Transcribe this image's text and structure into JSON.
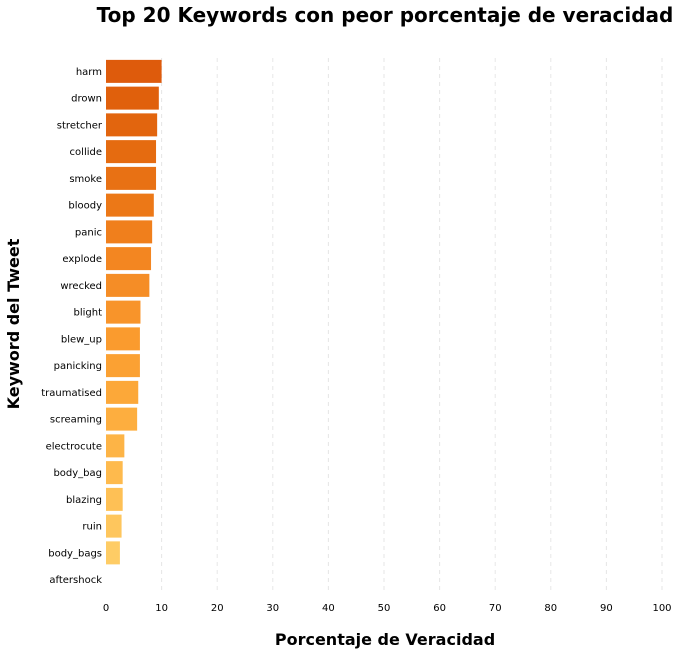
{
  "chart_data": {
    "type": "bar",
    "orientation": "horizontal",
    "title": "Top 20 Keywords con peor porcentaje de veracidad",
    "xlabel": "Porcentaje de Veracidad",
    "ylabel": "Keyword del Tweet",
    "xlim": [
      0,
      100
    ],
    "xticks": [
      "0",
      "10",
      "20",
      "30",
      "40",
      "50",
      "60",
      "70",
      "80",
      "90",
      "100"
    ],
    "grid": "vertical dashed",
    "categories": [
      "harm",
      "drown",
      "stretcher",
      "collide",
      "smoke",
      "bloody",
      "panic",
      "explode",
      "wrecked",
      "blight",
      "blew_up",
      "panicking",
      "traumatised",
      "screaming",
      "electrocute",
      "body_bag",
      "blazing",
      "ruin",
      "body_bags",
      "aftershock"
    ],
    "values": [
      10.0,
      9.5,
      9.2,
      9.0,
      9.0,
      8.6,
      8.3,
      8.1,
      7.8,
      6.2,
      6.1,
      6.1,
      5.8,
      5.6,
      3.3,
      3.0,
      3.0,
      2.8,
      2.5,
      0.0
    ],
    "colors": [
      "#de5b0c",
      "#e0600c",
      "#e2650e",
      "#e56b10",
      "#e87114",
      "#ec7817",
      "#f07f1c",
      "#f38621",
      "#f58d26",
      "#f8942a",
      "#fa9b2e",
      "#fba133",
      "#fca839",
      "#fdae3f",
      "#fdb446",
      "#feba4d",
      "#fec055",
      "#fec65d",
      "#fecc65",
      "#ffd26d"
    ]
  }
}
